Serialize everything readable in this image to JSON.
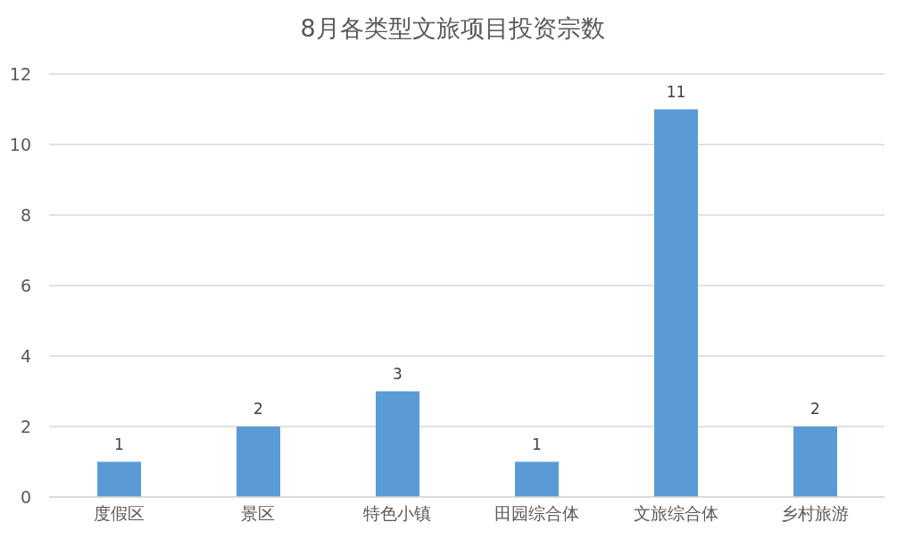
{
  "chart_data": {
    "type": "bar",
    "title": "8月各类型文旅项目投资宗数",
    "categories": [
      "度假区",
      "景区",
      "特色小镇",
      "田园综合体",
      "文旅综合体",
      "乡村旅游"
    ],
    "values": [
      1,
      2,
      3,
      1,
      11,
      2
    ],
    "color": "#5b9bd5",
    "ylim": [
      0,
      12
    ],
    "yticks": [
      0,
      2,
      4,
      6,
      8,
      10,
      12
    ],
    "grid": "y",
    "data_labels": true
  }
}
